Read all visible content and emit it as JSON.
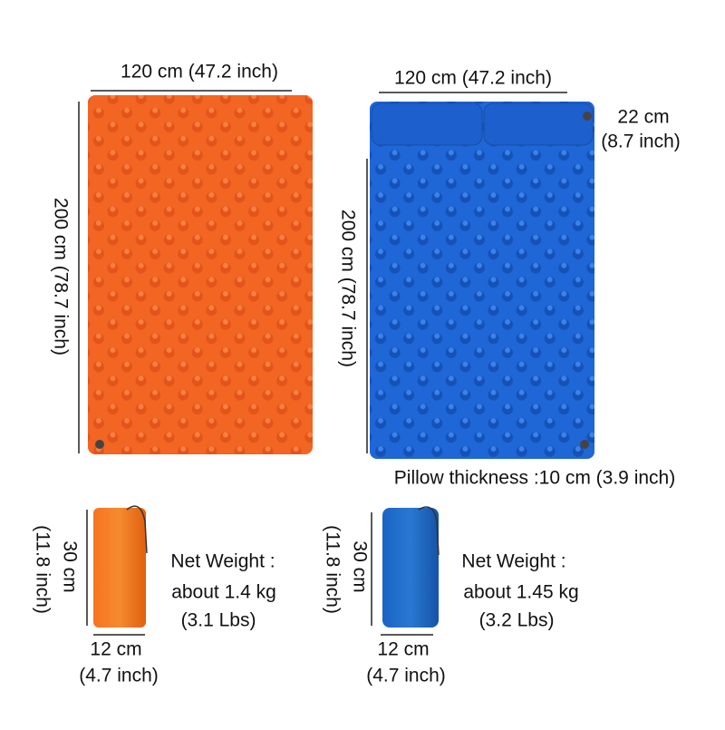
{
  "products": [
    {
      "width": "120 cm (47.2 inch)",
      "length": "200 cm (78.7 inch)",
      "bag": {
        "height": [
          "30 cm",
          "(11.8 inch)"
        ],
        "width": [
          "12 cm",
          "(4.7 inch)"
        ],
        "weight": [
          "Net Weight :",
          "about 1.4 kg",
          "(3.1 Lbs)"
        ]
      }
    },
    {
      "width": "120 cm (47.2 inch)",
      "length": "200 cm (78.7 inch)",
      "pillow": [
        "22 cm",
        "(8.7 inch)"
      ],
      "pillow_thickness": "Pillow thickness :10 cm (3.9 inch)",
      "bag": {
        "height": [
          "30 cm",
          "(11.8 inch)"
        ],
        "width": [
          "12 cm",
          "(4.7 inch)"
        ],
        "weight": [
          "Net Weight :",
          "about 1.45 kg",
          "(3.2 Lbs)"
        ]
      }
    }
  ]
}
